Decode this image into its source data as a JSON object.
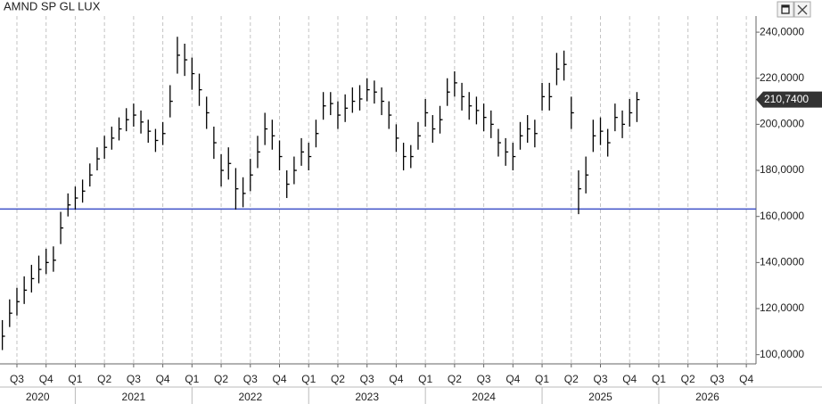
{
  "chart_data": {
    "type": "ohlc",
    "title": "AMND SP GL LUX",
    "x": [
      2020.375,
      2020.4375,
      2020.5,
      2020.5625,
      2020.625,
      2020.6875,
      2020.75,
      2020.8125,
      2020.875,
      2020.9375,
      2021,
      2021.0625,
      2021.125,
      2021.1875,
      2021.25,
      2021.3125,
      2021.375,
      2021.4375,
      2021.5,
      2021.5625,
      2021.625,
      2021.6875,
      2021.75,
      2021.8125,
      2021.875,
      2021.9375,
      2022,
      2022.0625,
      2022.125,
      2022.1875,
      2022.25,
      2022.3125,
      2022.375,
      2022.4375,
      2022.5,
      2022.5625,
      2022.625,
      2022.6875,
      2022.75,
      2022.8125,
      2022.875,
      2022.9375,
      2023,
      2023.0625,
      2023.125,
      2023.1875,
      2023.25,
      2023.3125,
      2023.375,
      2023.4375,
      2023.5,
      2023.5625,
      2023.625,
      2023.6875,
      2023.75,
      2023.8125,
      2023.875,
      2023.9375,
      2024,
      2024.0625,
      2024.125,
      2024.1875,
      2024.25,
      2024.3125,
      2024.375,
      2024.4375,
      2024.5,
      2024.5625,
      2024.625,
      2024.6875,
      2024.75,
      2024.8125,
      2024.875,
      2024.9375,
      2025,
      2025.0625,
      2025.125,
      2025.1875,
      2025.25,
      2025.3125,
      2025.375,
      2025.4375,
      2025.5,
      2025.5625,
      2025.625,
      2025.6875,
      2025.75,
      2025.8125
    ],
    "high": [
      115,
      124,
      129,
      134,
      139,
      143,
      146,
      147,
      162,
      170,
      173,
      176,
      183,
      190,
      195,
      199,
      203,
      207,
      209,
      206,
      202,
      198,
      201,
      217,
      238,
      235,
      229,
      222,
      212,
      199,
      187,
      190,
      181,
      177,
      185,
      195,
      205,
      202,
      193,
      180,
      186,
      194,
      192,
      202,
      214,
      214,
      210,
      213,
      216,
      217,
      220,
      219,
      216,
      210,
      200,
      192,
      191,
      201,
      211,
      204,
      208,
      220,
      223,
      218,
      214,
      212,
      209,
      206,
      198,
      194,
      192,
      201,
      204,
      202,
      218,
      218,
      231,
      232,
      212,
      180,
      186,
      202,
      203,
      198,
      209,
      206,
      211,
      214
    ],
    "low": [
      102,
      112,
      117,
      122,
      127,
      131,
      135,
      136,
      148,
      160,
      163,
      166,
      173,
      180,
      185,
      189,
      193,
      197,
      199,
      196,
      192,
      188,
      191,
      203,
      222,
      221,
      215,
      208,
      198,
      185,
      173,
      176,
      163,
      164,
      171,
      181,
      191,
      189,
      180,
      168,
      174,
      182,
      180,
      190,
      202,
      204,
      198,
      201,
      205,
      206,
      210,
      209,
      204,
      198,
      188,
      180,
      181,
      189,
      199,
      192,
      196,
      208,
      212,
      206,
      202,
      200,
      197,
      194,
      186,
      182,
      180,
      189,
      192,
      190,
      206,
      206,
      217,
      219,
      198,
      161,
      170,
      188,
      191,
      186,
      197,
      194,
      199,
      201
    ],
    "close": [
      108,
      118,
      123,
      128,
      133,
      137,
      140,
      141,
      155,
      165,
      168,
      171,
      178,
      185,
      190,
      194,
      198,
      202,
      204,
      201,
      197,
      193,
      196,
      210,
      230,
      228,
      222,
      215,
      205,
      192,
      180,
      183,
      172,
      170,
      178,
      188,
      198,
      195,
      186,
      174,
      180,
      188,
      186,
      196,
      208,
      209,
      204,
      207,
      210,
      211,
      215,
      214,
      210,
      204,
      194,
      186,
      186,
      195,
      205,
      198,
      202,
      214,
      218,
      212,
      208,
      206,
      203,
      200,
      192,
      188,
      186,
      195,
      198,
      196,
      212,
      212,
      224,
      226,
      205,
      172,
      178,
      195,
      197,
      192,
      203,
      200,
      205,
      210.74
    ],
    "color": "#000000",
    "hline": 163.2,
    "hline_color": "#3f51c8",
    "last_label": "210,7400",
    "xlim": [
      2020.355,
      2026.833
    ],
    "ylim": [
      96,
      247
    ],
    "yticks": [
      {
        "value": 100,
        "label": "100,0000"
      },
      {
        "value": 120,
        "label": "120,0000"
      },
      {
        "value": 140,
        "label": "140,0000"
      },
      {
        "value": 160,
        "label": "160,0000"
      },
      {
        "value": 180,
        "label": "180,0000"
      },
      {
        "value": 200,
        "label": "200,0000"
      },
      {
        "value": 220,
        "label": "220,0000"
      },
      {
        "value": 240,
        "label": "240,0000"
      }
    ],
    "xticks": [
      {
        "value": 2020.5,
        "label": "Q3"
      },
      {
        "value": 2020.75,
        "label": "Q4"
      },
      {
        "value": 2021,
        "label": "Q1"
      },
      {
        "value": 2021.25,
        "label": "Q2"
      },
      {
        "value": 2021.5,
        "label": "Q3"
      },
      {
        "value": 2021.75,
        "label": "Q4"
      },
      {
        "value": 2022,
        "label": "Q1"
      },
      {
        "value": 2022.25,
        "label": "Q2"
      },
      {
        "value": 2022.5,
        "label": "Q3"
      },
      {
        "value": 2022.75,
        "label": "Q4"
      },
      {
        "value": 2023,
        "label": "Q1"
      },
      {
        "value": 2023.25,
        "label": "Q2"
      },
      {
        "value": 2023.5,
        "label": "Q3"
      },
      {
        "value": 2023.75,
        "label": "Q4"
      },
      {
        "value": 2024,
        "label": "Q1"
      },
      {
        "value": 2024.25,
        "label": "Q2"
      },
      {
        "value": 2024.5,
        "label": "Q3"
      },
      {
        "value": 2024.75,
        "label": "Q4"
      },
      {
        "value": 2025,
        "label": "Q1"
      },
      {
        "value": 2025.25,
        "label": "Q2"
      },
      {
        "value": 2025.5,
        "label": "Q3"
      },
      {
        "value": 2025.75,
        "label": "Q4"
      },
      {
        "value": 2026,
        "label": "Q1"
      },
      {
        "value": 2026.25,
        "label": "Q2"
      },
      {
        "value": 2026.5,
        "label": "Q3"
      },
      {
        "value": 2026.75,
        "label": "Q4"
      }
    ],
    "years": [
      "2020",
      "2021",
      "2022",
      "2023",
      "2024",
      "2025",
      "2026"
    ],
    "grid": true
  }
}
